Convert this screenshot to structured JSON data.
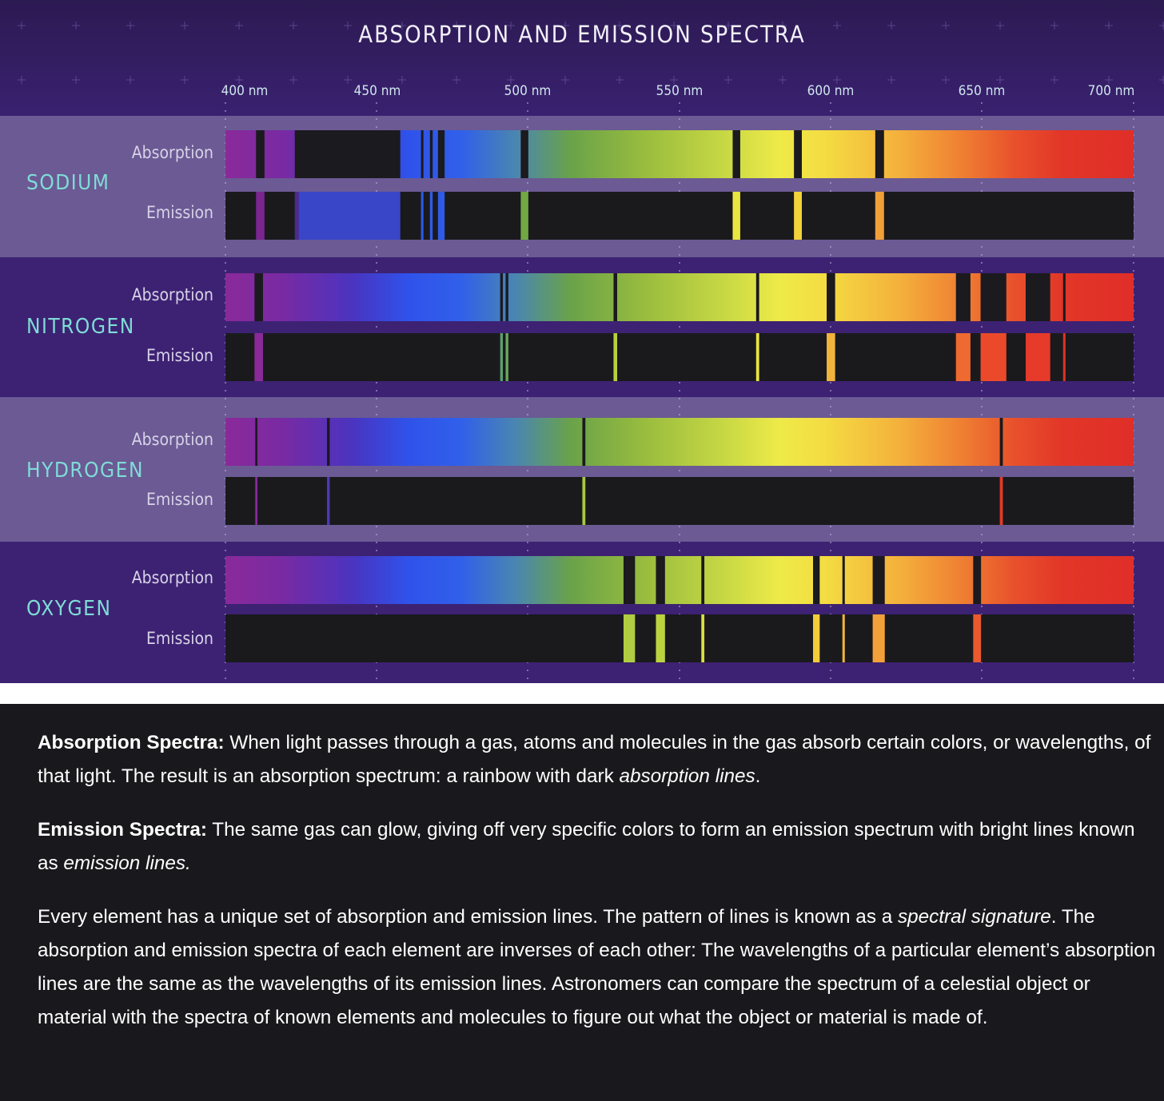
{
  "figure": {
    "title": "ABSORPTION AND EMISSION SPECTRA",
    "axis": {
      "unit": "nm",
      "min_nm": 400,
      "max_nm": 700,
      "ticks": [
        "400 nm",
        "450 nm",
        "500 nm",
        "550 nm",
        "600 nm",
        "650 nm",
        "700 nm"
      ]
    },
    "row_labels": {
      "absorption": "Absorption",
      "emission": "Emission"
    },
    "elements": [
      {
        "name": "SODIUM",
        "lines": [
          {
            "nm": 411.5,
            "w": 2.8,
            "color": "#7a2590"
          },
          {
            "nm": 424,
            "w": 2.2,
            "color": "#4a2c8a"
          },
          {
            "nm": 441,
            "w": 33.5,
            "color": "#3a46c8"
          },
          {
            "nm": 465,
            "w": 0.8,
            "color": "#2f5ae8"
          },
          {
            "nm": 468,
            "w": 0.9,
            "color": "#2f5ae8"
          },
          {
            "nm": 471.3,
            "w": 2.2,
            "color": "#2f5ae8"
          },
          {
            "nm": 498.8,
            "w": 2.5,
            "color": "#72a844"
          },
          {
            "nm": 568.8,
            "w": 2.5,
            "color": "#e8e640"
          },
          {
            "nm": 589.1,
            "w": 2.6,
            "color": "#f2d43a"
          },
          {
            "nm": 616.1,
            "w": 2.9,
            "color": "#f0a038"
          }
        ]
      },
      {
        "name": "NITROGEN",
        "lines": [
          {
            "nm": 411,
            "w": 2.8,
            "color": "#8a2a9a"
          },
          {
            "nm": 491.2,
            "w": 0.9,
            "color": "#5aa070"
          },
          {
            "nm": 493,
            "w": 0.9,
            "color": "#6aa85a"
          },
          {
            "nm": 528.8,
            "w": 1.2,
            "color": "#b8d040"
          },
          {
            "nm": 575.8,
            "w": 1.0,
            "color": "#e8e640"
          },
          {
            "nm": 600,
            "w": 2.8,
            "color": "#f2b43a"
          },
          {
            "nm": 643.7,
            "w": 4.8,
            "color": "#ee6a30"
          },
          {
            "nm": 653.7,
            "w": 8.5,
            "color": "#ea4a2a"
          },
          {
            "nm": 668.4,
            "w": 8.1,
            "color": "#e63a2a"
          },
          {
            "nm": 677.1,
            "w": 0.8,
            "color": "#e23026"
          }
        ]
      },
      {
        "name": "HYDROGEN",
        "lines": [
          {
            "nm": 410.2,
            "w": 0.7,
            "color": "#8a2aa0"
          },
          {
            "nm": 434,
            "w": 0.9,
            "color": "#4a3aba"
          },
          {
            "nm": 518.4,
            "w": 1.0,
            "color": "#a8c840"
          },
          {
            "nm": 656.3,
            "w": 1.0,
            "color": "#e43a2a"
          }
        ]
      },
      {
        "name": "OXYGEN",
        "lines": [
          {
            "nm": 533.4,
            "w": 3.8,
            "color": "#b0cc40"
          },
          {
            "nm": 543.7,
            "w": 3.0,
            "color": "#bcd340"
          },
          {
            "nm": 557.7,
            "w": 1.0,
            "color": "#d8e040"
          },
          {
            "nm": 595.2,
            "w": 2.2,
            "color": "#f2cc3a"
          },
          {
            "nm": 604.2,
            "w": 0.8,
            "color": "#f2b43a"
          },
          {
            "nm": 615.8,
            "w": 4.0,
            "color": "#f2a03a"
          },
          {
            "nm": 648.3,
            "w": 2.6,
            "color": "#ea5a2c"
          }
        ]
      }
    ]
  },
  "description": {
    "p1": {
      "bold": "Absorption Spectra:",
      "text": " When light passes through a gas, atoms and molecules in the gas absorb certain colors, or wavelengths, of that light. The result is an absorption spectrum: a rainbow with dark ",
      "italic": "absorption lines",
      "end": "."
    },
    "p2": {
      "bold": "Emission Spectra:",
      "text": " The same gas can glow, giving off very specific colors to form an emission spectrum with bright lines known as ",
      "italic": "emission lines."
    },
    "p3": {
      "text": "Every element has a unique set of absorption and emission lines. The pattern of lines is known as a ",
      "italic": "spectral signature",
      "rest": ". The absorption and emission spectra of each element are inverses of each other: The wavelengths of a particular element’s absorption lines are the same as the wavelengths of its emission lines. Astronomers can compare the spectrum of a celestial object or material with the spectra of known elements and molecules to figure out what the object or material is made of."
    }
  }
}
